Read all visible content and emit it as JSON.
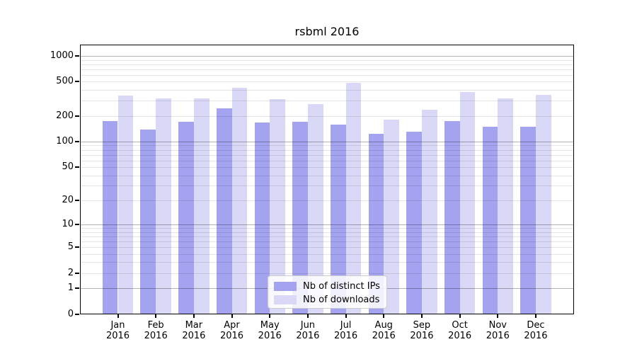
{
  "chart_data": {
    "type": "bar",
    "title": "rsbml 2016",
    "categories": [
      "Jan 2016",
      "Feb 2016",
      "Mar 2016",
      "Apr 2016",
      "May 2016",
      "Jun 2016",
      "Jul 2016",
      "Aug 2016",
      "Sep 2016",
      "Oct 2016",
      "Nov 2016",
      "Dec 2016"
    ],
    "series": [
      {
        "name": "Nb of distinct IPs",
        "values": [
          175,
          138,
          172,
          244,
          169,
          170,
          158,
          123,
          131,
          175,
          149,
          149
        ]
      },
      {
        "name": "Nb of downloads",
        "values": [
          347,
          321,
          321,
          426,
          315,
          277,
          486,
          180,
          237,
          382,
          320,
          354
        ]
      }
    ],
    "yscale": "log1p",
    "yticks": [
      0,
      1,
      2,
      5,
      10,
      20,
      50,
      100,
      200,
      500,
      1000
    ],
    "ylim": [
      0,
      1350
    ],
    "grid": "horizontal major+minor",
    "legend_position": "lower center"
  },
  "colors": {
    "ips_bar": "#a3a3f0",
    "downloads_bar": "#d9d9f7",
    "major_gridline": "#b3b3b3",
    "minor_gridline": "#e6e6e6",
    "axis": "#000000"
  }
}
